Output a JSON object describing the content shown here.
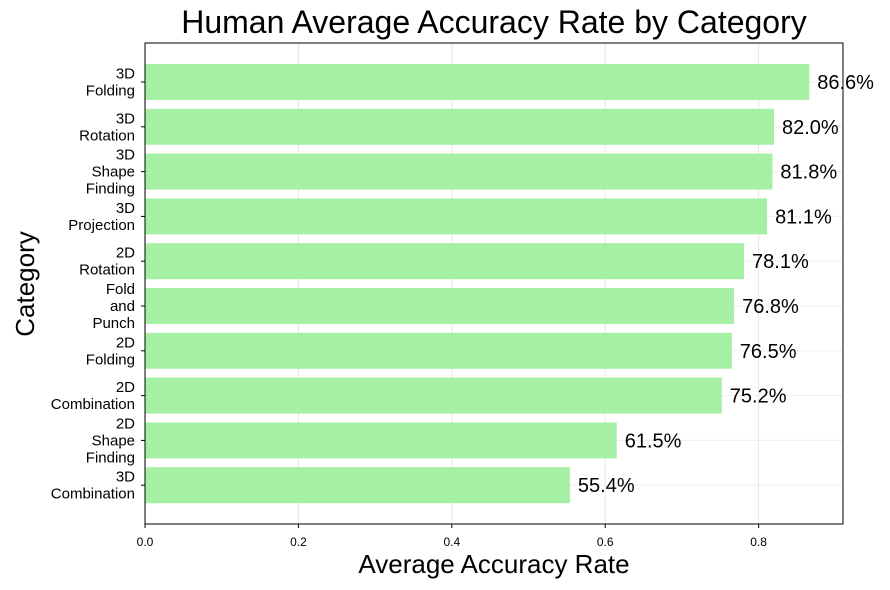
{
  "chart_data": {
    "type": "bar",
    "orientation": "horizontal",
    "title": "Human Average Accuracy Rate by Category",
    "xlabel": "Average Accuracy Rate",
    "ylabel": "Category",
    "categories": [
      "3D Folding",
      "3D Rotation",
      "3D Shape Finding",
      "3D Projection",
      "2D Rotation",
      "Fold and Punch",
      "2D Folding",
      "2D Combination",
      "2D Shape Finding",
      "3D Combination"
    ],
    "category_lines": [
      [
        "3D",
        "Folding"
      ],
      [
        "3D",
        "Rotation"
      ],
      [
        "3D",
        "Shape",
        "Finding"
      ],
      [
        "3D",
        "Projection"
      ],
      [
        "2D",
        "Rotation"
      ],
      [
        "Fold",
        "and",
        "Punch"
      ],
      [
        "2D",
        "Folding"
      ],
      [
        "2D",
        "Combination"
      ],
      [
        "2D",
        "Shape",
        "Finding"
      ],
      [
        "3D",
        "Combination"
      ]
    ],
    "values": [
      0.866,
      0.82,
      0.818,
      0.811,
      0.781,
      0.768,
      0.765,
      0.752,
      0.615,
      0.554
    ],
    "data_labels": [
      "86.6%",
      "82.0%",
      "81.8%",
      "81.1%",
      "78.1%",
      "76.8%",
      "76.5%",
      "75.2%",
      "61.5%",
      "55.4%"
    ],
    "xticks": [
      "0.0",
      "0.2",
      "0.4",
      "0.6",
      "0.8"
    ],
    "xlim": [
      0,
      0.91
    ],
    "grid": true,
    "bar_color": "#a6f0a6"
  }
}
